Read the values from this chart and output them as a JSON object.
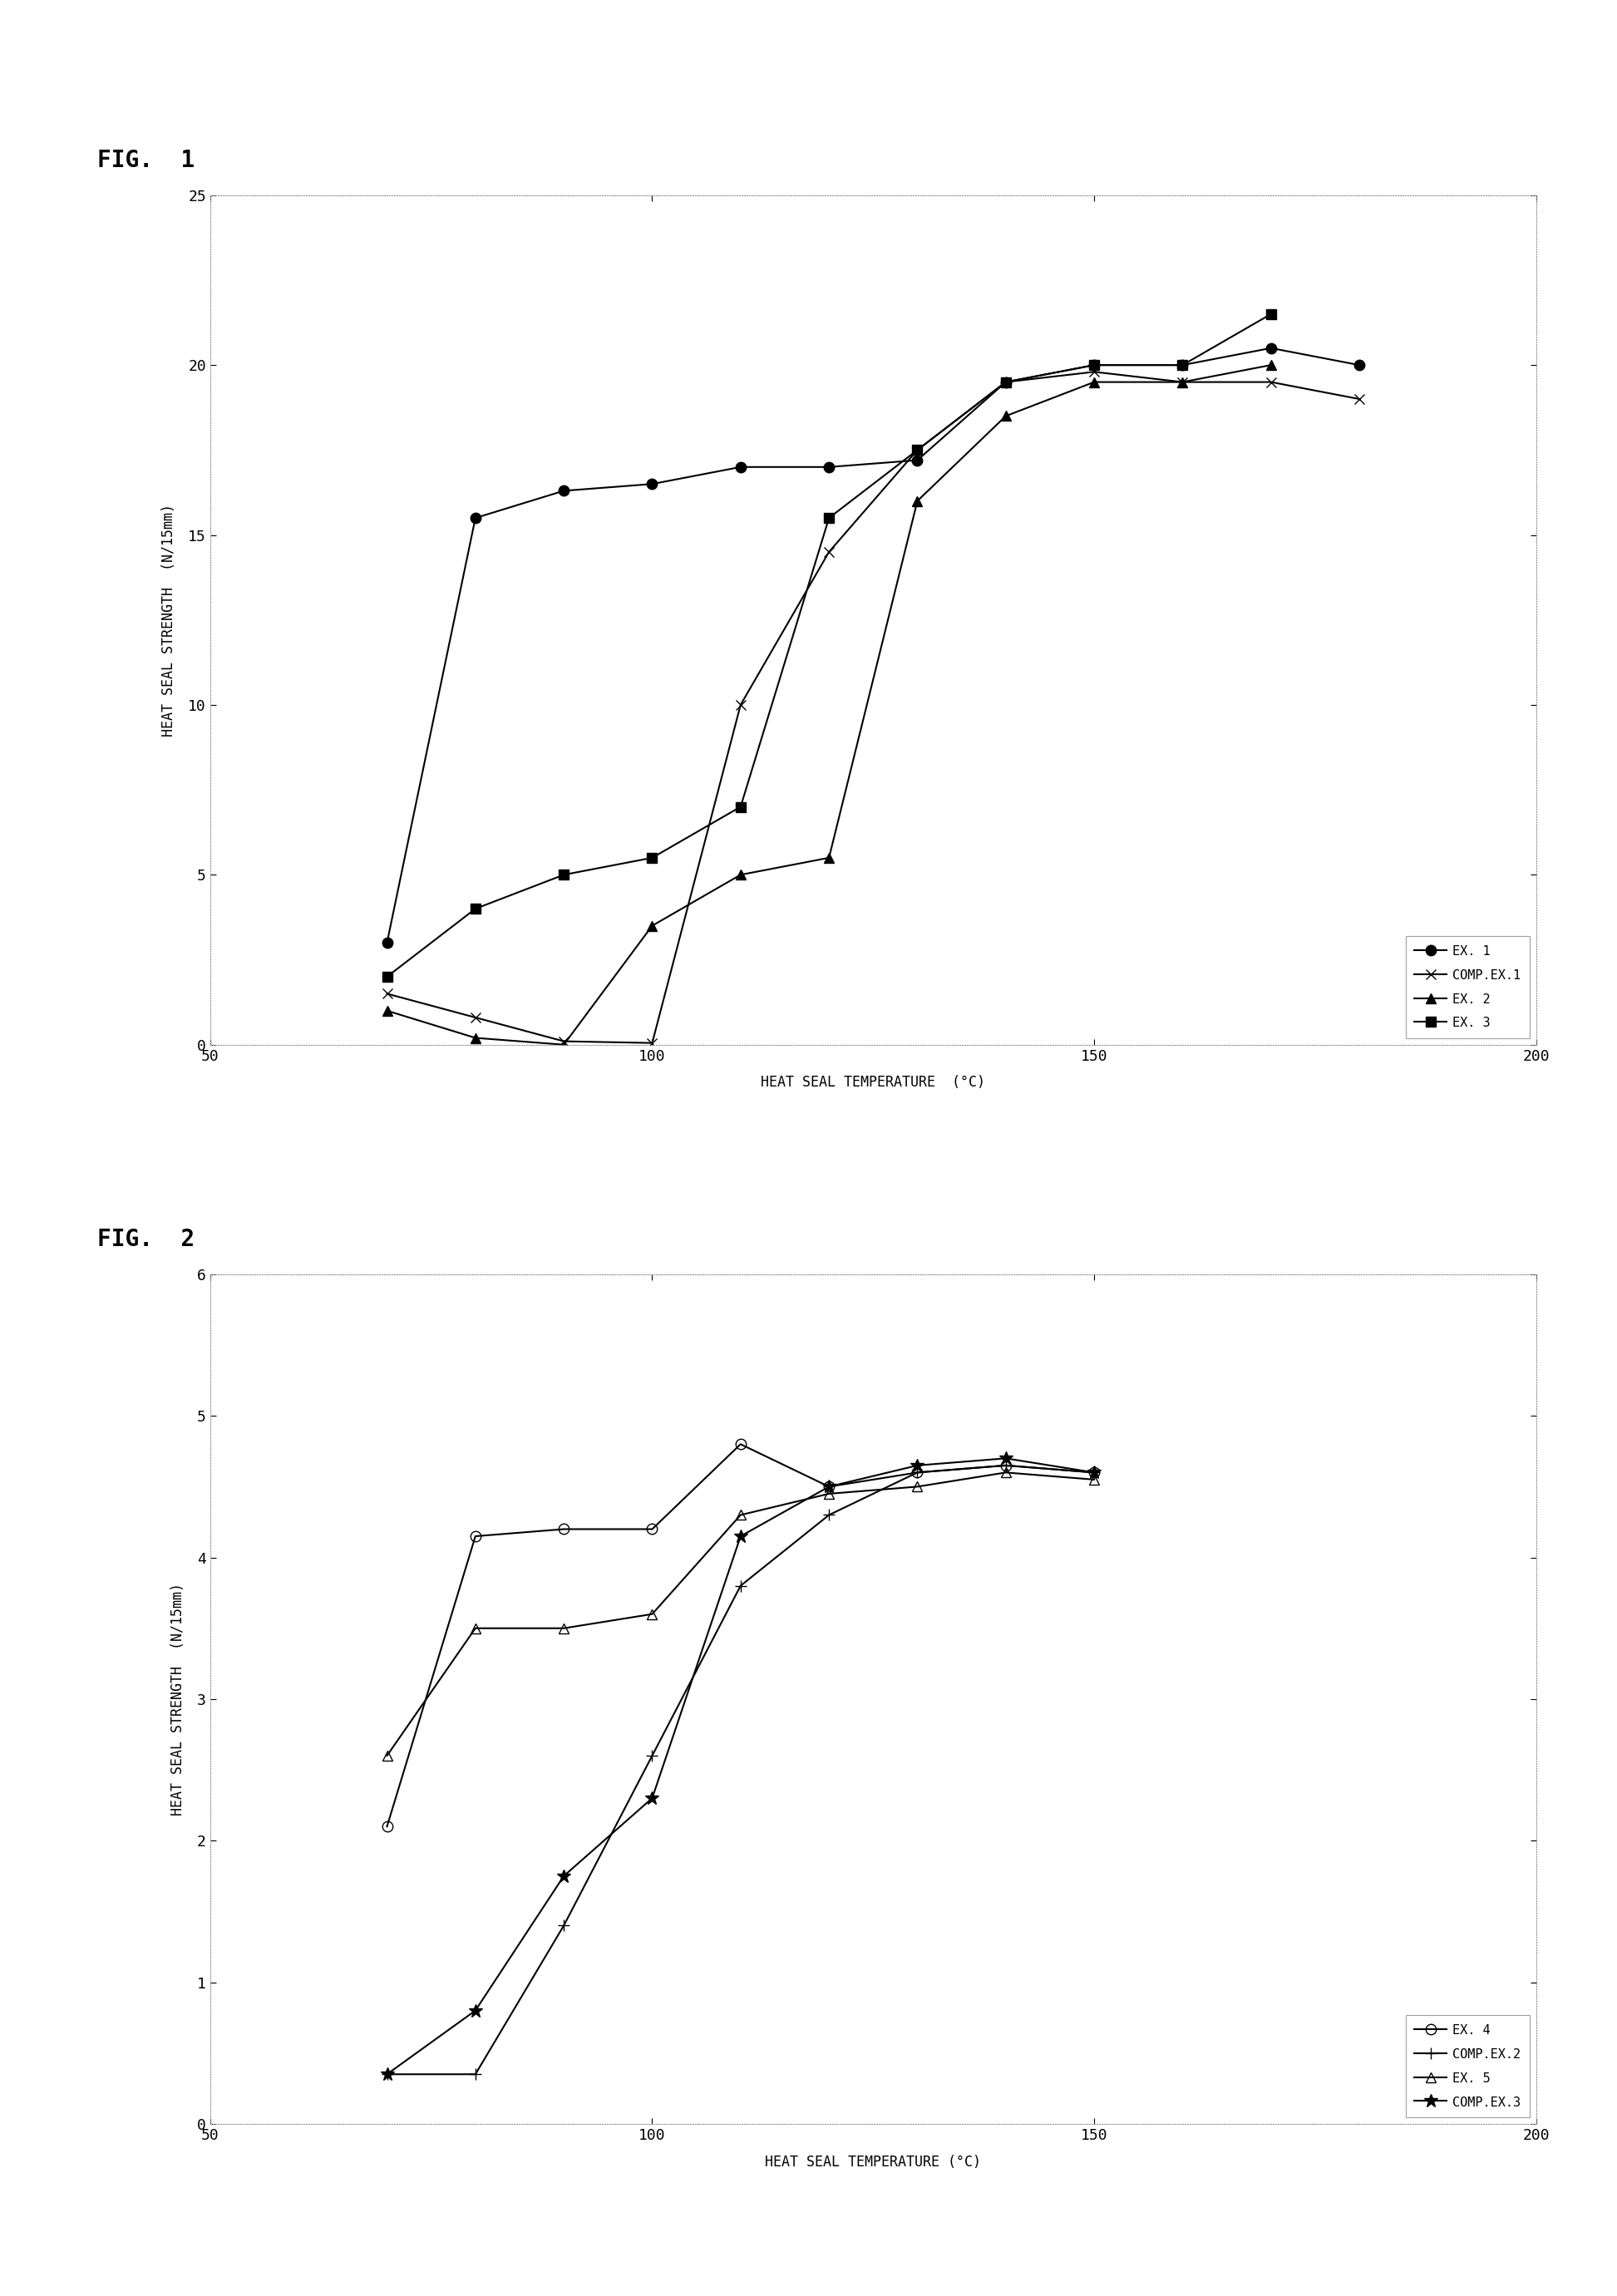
{
  "fig1": {
    "xlabel": "HEAT SEAL TEMPERATURE  (°C)",
    "ylabel": "HEAT SEAL STRENGTH  (N/15mm)",
    "xlim": [
      50,
      200
    ],
    "ylim": [
      0,
      25
    ],
    "xticks": [
      50,
      100,
      150,
      200
    ],
    "yticks": [
      0,
      5,
      10,
      15,
      20,
      25
    ],
    "series": [
      {
        "label": "EX. 1",
        "x": [
          70,
          80,
          90,
          100,
          110,
          120,
          130,
          140,
          150,
          160,
          170,
          180
        ],
        "y": [
          3.0,
          15.5,
          16.3,
          16.5,
          17.0,
          17.0,
          17.2,
          19.5,
          20.0,
          20.0,
          20.5,
          20.0
        ],
        "marker": "o",
        "markersize": 9,
        "markerfacecolor": "#000000",
        "markeredgecolor": "#000000",
        "color": "#000000",
        "linewidth": 1.5
      },
      {
        "label": "COMP.EX.1",
        "x": [
          70,
          80,
          90,
          100,
          110,
          120,
          130,
          140,
          150,
          160,
          170,
          180
        ],
        "y": [
          1.5,
          0.8,
          0.1,
          0.05,
          10.0,
          14.5,
          17.5,
          19.5,
          19.8,
          19.5,
          19.5,
          19.0
        ],
        "marker": "x",
        "markersize": 9,
        "markerfacecolor": "#000000",
        "markeredgecolor": "#000000",
        "color": "#000000",
        "linewidth": 1.5
      },
      {
        "label": "EX. 2",
        "x": [
          70,
          80,
          90,
          100,
          110,
          120,
          130,
          140,
          150,
          160,
          170
        ],
        "y": [
          1.0,
          0.2,
          0.0,
          3.5,
          5.0,
          5.5,
          16.0,
          18.5,
          19.5,
          19.5,
          20.0
        ],
        "marker": "^",
        "markersize": 9,
        "markerfacecolor": "#000000",
        "markeredgecolor": "#000000",
        "color": "#000000",
        "linewidth": 1.5
      },
      {
        "label": "EX. 3",
        "x": [
          70,
          80,
          90,
          100,
          110,
          120,
          130,
          140,
          150,
          160,
          170
        ],
        "y": [
          2.0,
          4.0,
          5.0,
          5.5,
          7.0,
          15.5,
          17.5,
          19.5,
          20.0,
          20.0,
          21.5
        ],
        "marker": "s",
        "markersize": 8,
        "markerfacecolor": "#000000",
        "markeredgecolor": "#000000",
        "color": "#000000",
        "linewidth": 1.5
      }
    ],
    "legend_labels": [
      "EX. 1",
      "COMP.EX.1",
      "EX. 2",
      "EX. 3"
    ]
  },
  "fig2": {
    "xlabel": "HEAT SEAL TEMPERATURE (°C)",
    "ylabel": "HEAT SEAL STRENGTH  (N/15mm)",
    "xlim": [
      50,
      200
    ],
    "ylim": [
      0,
      6
    ],
    "xticks": [
      50,
      100,
      150,
      200
    ],
    "yticks": [
      0,
      1,
      2,
      3,
      4,
      5,
      6
    ],
    "series": [
      {
        "label": "EX. 4",
        "x": [
          70,
          80,
          90,
          100,
          110,
          120,
          130,
          140,
          150
        ],
        "y": [
          2.1,
          4.15,
          4.2,
          4.2,
          4.8,
          4.5,
          4.6,
          4.65,
          4.6
        ],
        "marker": "o",
        "markersize": 9,
        "markerfacecolor": "none",
        "markeredgecolor": "#000000",
        "color": "#000000",
        "linewidth": 1.5
      },
      {
        "label": "COMP.EX.2",
        "x": [
          70,
          80,
          90,
          100,
          110,
          120,
          130,
          140,
          150
        ],
        "y": [
          0.35,
          0.35,
          1.4,
          2.6,
          3.8,
          4.3,
          4.6,
          4.65,
          4.6
        ],
        "marker": "+",
        "markersize": 10,
        "markerfacecolor": "#000000",
        "markeredgecolor": "#000000",
        "color": "#000000",
        "linewidth": 1.5
      },
      {
        "label": "EX. 5",
        "x": [
          70,
          80,
          90,
          100,
          110,
          120,
          130,
          140,
          150
        ],
        "y": [
          2.6,
          3.5,
          3.5,
          3.6,
          4.3,
          4.45,
          4.5,
          4.6,
          4.55
        ],
        "marker": "^",
        "markersize": 9,
        "markerfacecolor": "none",
        "markeredgecolor": "#000000",
        "color": "#000000",
        "linewidth": 1.5
      },
      {
        "label": "COMP.EX.3",
        "x": [
          70,
          80,
          90,
          100,
          110,
          120,
          130,
          140,
          150
        ],
        "y": [
          0.35,
          0.8,
          1.75,
          2.3,
          4.15,
          4.5,
          4.65,
          4.7,
          4.6
        ],
        "marker": "*",
        "markersize": 12,
        "markerfacecolor": "#000000",
        "markeredgecolor": "#000000",
        "color": "#000000",
        "linewidth": 1.5
      }
    ],
    "legend_labels": [
      "EX. 4",
      "COMP.EX.2",
      "EX. 5",
      "COMP.EX.3"
    ]
  },
  "background_color": "#ffffff",
  "fig1_label": "FIG.  1",
  "fig2_label": "FIG.  2",
  "fig_label_fontsize": 20,
  "axis_label_fontsize": 12,
  "tick_labelsize": 13,
  "legend_fontsize": 11
}
